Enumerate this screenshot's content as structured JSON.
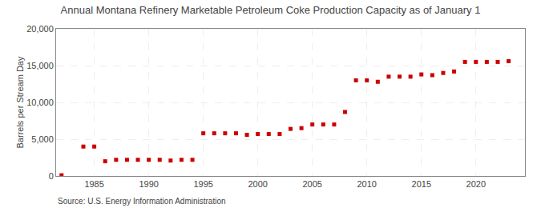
{
  "chart_data": {
    "type": "scatter",
    "title": "Annual Montana Refinery Marketable Petroleum Coke Production Capacity as of January 1",
    "ylabel": "Barrels per Stream Day",
    "annotations": [
      "Source: U.S. Energy Information Administration"
    ],
    "color": "#cc0000",
    "marker": "square",
    "grid": true,
    "x": [
      1982,
      1984,
      1985,
      1986,
      1987,
      1988,
      1989,
      1990,
      1991,
      1992,
      1993,
      1994,
      1995,
      1996,
      1997,
      1998,
      1999,
      2000,
      2001,
      2002,
      2003,
      2004,
      2005,
      2006,
      2007,
      2008,
      2009,
      2010,
      2011,
      2012,
      2013,
      2014,
      2015,
      2016,
      2017,
      2018,
      2019,
      2020,
      2021,
      2022,
      2023
    ],
    "values": [
      100,
      4000,
      4000,
      2000,
      2200,
      2200,
      2200,
      2200,
      2200,
      2100,
      2200,
      2200,
      5800,
      5800,
      5800,
      5800,
      5600,
      5700,
      5700,
      5700,
      6400,
      6500,
      7000,
      7000,
      7000,
      8700,
      13000,
      13000,
      12800,
      13500,
      13500,
      13500,
      13800,
      13700,
      14000,
      14200,
      15500,
      15500,
      15500,
      15500,
      15600
    ],
    "xlim": [
      1981.5,
      2024.5
    ],
    "xticks": [
      1985,
      1990,
      1995,
      2000,
      2005,
      2010,
      2015,
      2020
    ],
    "ylim": [
      0,
      20000
    ],
    "yticks": [
      0,
      {
        "value": 5000,
        "label": "5,000"
      },
      {
        "value": 10000,
        "label": "10,000"
      },
      {
        "value": 15000,
        "label": "15,000"
      },
      {
        "value": 20000,
        "label": "20,000"
      }
    ]
  }
}
